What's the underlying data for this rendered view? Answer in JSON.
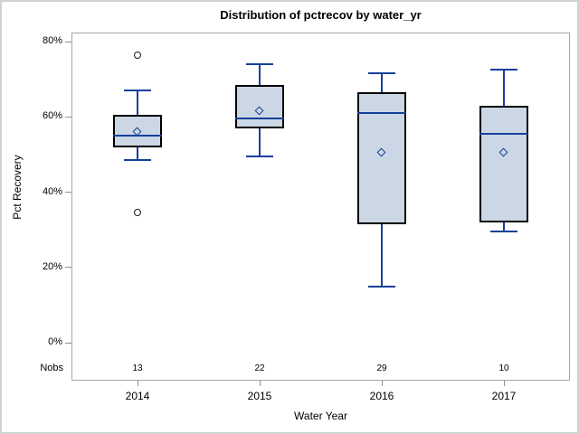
{
  "title": "Distribution of pctrecov by water_yr",
  "y_axis": {
    "label": "Pct Recovery",
    "ticks": [
      {
        "label": "80%",
        "value": 80
      },
      {
        "label": "60%",
        "value": 60
      },
      {
        "label": "40%",
        "value": 40
      },
      {
        "label": "20%",
        "value": 20
      },
      {
        "label": "0%",
        "value": 0
      }
    ]
  },
  "x_axis": {
    "label": "Water Year"
  },
  "nobs_label": "Nobs",
  "colors": {
    "box_fill": "#ccd7e6",
    "box_border": "#000000",
    "line_blue": "#16409a",
    "outlier_stroke": "#1a1a1a",
    "frame_gray": "#a3a8a8",
    "tick_gray": "#8c9292"
  },
  "chart_data": {
    "type": "boxplot",
    "title": "Distribution of pctrecov by water_yr",
    "xlabel": "Water Year",
    "ylabel": "Pct Recovery",
    "ylim": [
      0,
      80
    ],
    "y_tick_labels": [
      "0%",
      "20%",
      "40%",
      "60%",
      "80%"
    ],
    "grid": false,
    "categories": [
      "2014",
      "2015",
      "2016",
      "2017"
    ],
    "nobs": [
      "13",
      "22",
      "29",
      "10"
    ],
    "series": [
      {
        "category": "2014",
        "nobs": "13",
        "whisker_low": 48.5,
        "q1": 52,
        "median": 55,
        "q3": 60.5,
        "whisker_high": 67,
        "mean": 56,
        "outliers": [
          76.5,
          34.5
        ]
      },
      {
        "category": "2015",
        "nobs": "22",
        "whisker_low": 49.5,
        "q1": 57,
        "median": 59.5,
        "q3": 68.5,
        "whisker_high": 74,
        "mean": 61.5,
        "outliers": []
      },
      {
        "category": "2016",
        "nobs": "29",
        "whisker_low": 15,
        "q1": 31.5,
        "median": 61,
        "q3": 66.5,
        "whisker_high": 71.5,
        "mean": 50.5,
        "outliers": []
      },
      {
        "category": "2017",
        "nobs": "10",
        "whisker_low": 29.5,
        "q1": 32,
        "median": 55.5,
        "q3": 63,
        "whisker_high": 72.5,
        "mean": 50.5,
        "outliers": []
      }
    ]
  }
}
